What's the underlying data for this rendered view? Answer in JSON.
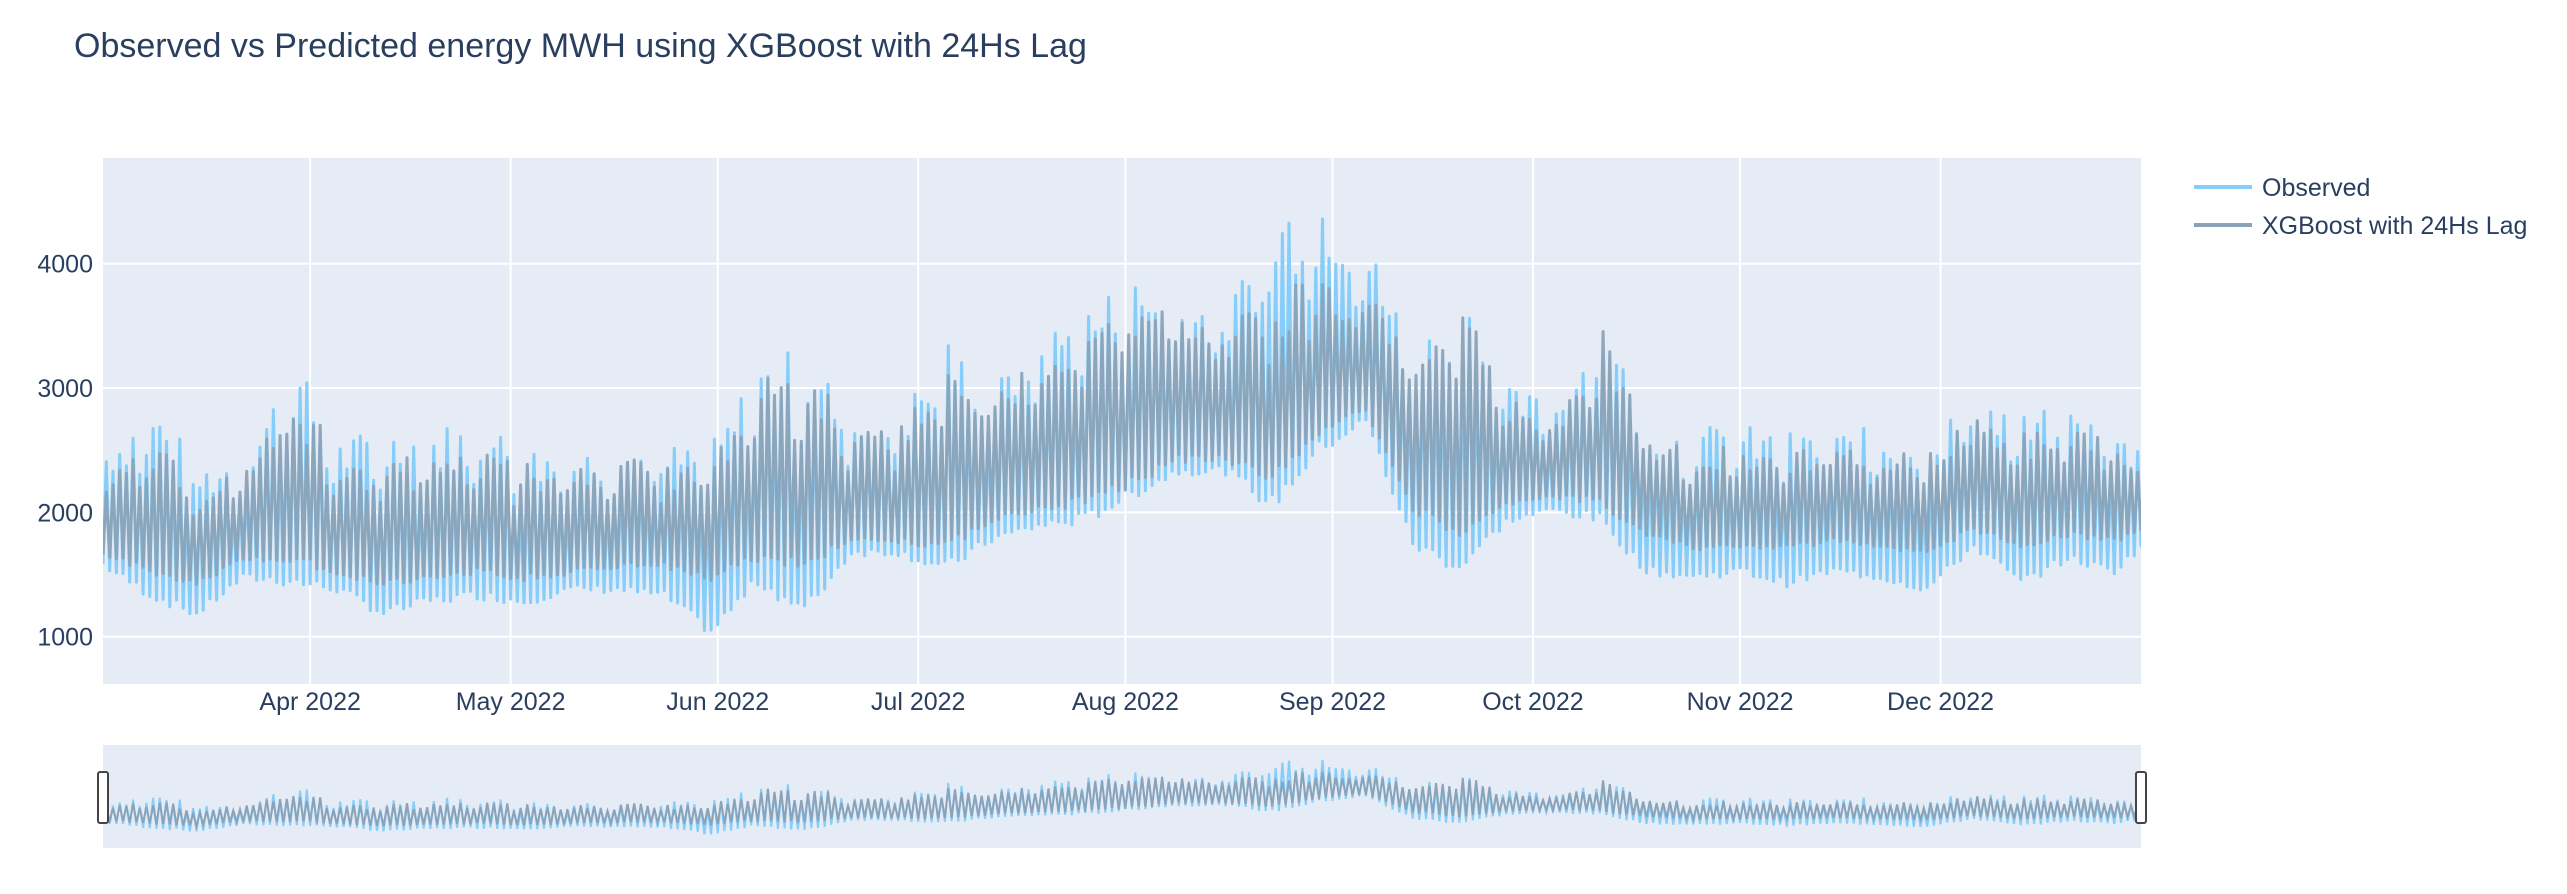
{
  "chart_data": {
    "type": "line",
    "title": "Observed vs Predicted energy MWH using XGBoost with 24Hs Lag",
    "xlabel": "",
    "ylabel": "",
    "x_range": [
      "2022-03-01",
      "2022-12-31"
    ],
    "ylim": [
      620,
      4850
    ],
    "y_ticks": [
      1000,
      2000,
      3000,
      4000
    ],
    "x_ticks": [
      {
        "date": "2022-04-01",
        "label": "Apr 2022"
      },
      {
        "date": "2022-05-01",
        "label": "May 2022"
      },
      {
        "date": "2022-06-01",
        "label": "Jun 2022"
      },
      {
        "date": "2022-07-01",
        "label": "Jul 2022"
      },
      {
        "date": "2022-08-01",
        "label": "Aug 2022"
      },
      {
        "date": "2022-09-01",
        "label": "Sep 2022"
      },
      {
        "date": "2022-10-01",
        "label": "Oct 2022"
      },
      {
        "date": "2022-11-01",
        "label": "Nov 2022"
      },
      {
        "date": "2022-12-01",
        "label": "Dec 2022"
      }
    ],
    "grid": true,
    "legend_position": "top-right",
    "range_slider": true,
    "daily_range": {
      "dates": [
        "2022-03-01",
        "2022-03-08",
        "2022-03-15",
        "2022-03-22",
        "2022-03-29",
        "2022-04-05",
        "2022-04-12",
        "2022-04-19",
        "2022-04-26",
        "2022-05-03",
        "2022-05-10",
        "2022-05-17",
        "2022-05-24",
        "2022-05-31",
        "2022-06-07",
        "2022-06-14",
        "2022-06-21",
        "2022-06-28",
        "2022-07-05",
        "2022-07-12",
        "2022-07-19",
        "2022-07-26",
        "2022-08-02",
        "2022-08-09",
        "2022-08-16",
        "2022-08-23",
        "2022-08-30",
        "2022-09-06",
        "2022-09-13",
        "2022-09-20",
        "2022-09-27",
        "2022-10-04",
        "2022-10-11",
        "2022-10-18",
        "2022-10-25",
        "2022-11-01",
        "2022-11-08",
        "2022-11-15",
        "2022-11-22",
        "2022-11-29",
        "2022-12-06",
        "2022-12-13",
        "2022-12-20",
        "2022-12-27",
        "2022-12-31"
      ],
      "observed_low": [
        1550,
        1300,
        1150,
        1450,
        1400,
        1350,
        1150,
        1250,
        1300,
        1250,
        1350,
        1350,
        1300,
        1000,
        1400,
        1150,
        1650,
        1650,
        1500,
        1750,
        1850,
        1900,
        2100,
        2300,
        2300,
        2000,
        2450,
        2700,
        1700,
        1500,
        1900,
        2000,
        1900,
        1500,
        1450,
        1500,
        1400,
        1500,
        1450,
        1350,
        1700,
        1400,
        1600,
        1500,
        1700
      ],
      "observed_high": [
        2550,
        2900,
        2400,
        2500,
        3250,
        2600,
        2700,
        2700,
        2750,
        2550,
        2500,
        2600,
        2550,
        2600,
        3250,
        3350,
        2800,
        2850,
        3400,
        3050,
        3450,
        3700,
        3900,
        3750,
        3700,
        4500,
        4650,
        4150,
        3350,
        3850,
        3000,
        2900,
        3600,
        2700,
        2700,
        2700,
        2650,
        2650,
        2700,
        2650,
        3000,
        2800,
        2850,
        2650,
        2550
      ],
      "predicted_low": [
        1650,
        1500,
        1400,
        1600,
        1600,
        1500,
        1400,
        1450,
        1500,
        1450,
        1500,
        1550,
        1550,
        1450,
        1600,
        1550,
        1750,
        1750,
        1700,
        1900,
        2000,
        2050,
        2200,
        2400,
        2400,
        2250,
        2600,
        2800,
        2000,
        1800,
        2050,
        2100,
        2050,
        1800,
        1700,
        1700,
        1700,
        1750,
        1700,
        1650,
        1850,
        1700,
        1800,
        1750,
        1850
      ],
      "predicted_high": [
        2350,
        2550,
        2250,
        2350,
        3100,
        2450,
        2450,
        2450,
        2550,
        2400,
        2350,
        2450,
        2400,
        2450,
        3100,
        3200,
        2650,
        2700,
        3200,
        2950,
        3300,
        3550,
        3800,
        3600,
        3550,
        3800,
        3900,
        3800,
        3200,
        3700,
        2900,
        2800,
        3500,
        2600,
        2550,
        2550,
        2500,
        2550,
        2550,
        2500,
        2800,
        2650,
        2700,
        2550,
        2450
      ]
    },
    "series": [
      {
        "name": "Observed",
        "color": "#86cdf9"
      },
      {
        "name": "XGBoost with 24Hs Lag",
        "color": "#8aa3b9"
      }
    ]
  }
}
